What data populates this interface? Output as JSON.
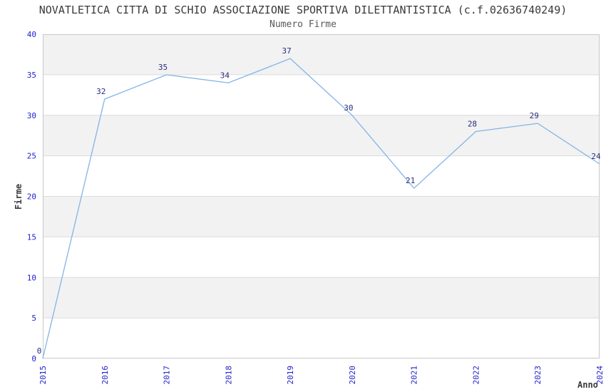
{
  "chart_data": {
    "type": "line",
    "title": "NOVATLETICA CITTA DI SCHIO ASSOCIAZIONE SPORTIVA DILETTANTISTICA (c.f.02636740249)",
    "subtitle": "Numero Firme",
    "xlabel": "Anno",
    "ylabel": "Firme",
    "x": [
      "2015",
      "2016",
      "2017",
      "2018",
      "2019",
      "2020",
      "2021",
      "2022",
      "2023",
      "2024"
    ],
    "values": [
      0,
      32,
      35,
      34,
      37,
      30,
      21,
      28,
      29,
      24
    ],
    "ylim": [
      0,
      40
    ],
    "ytick_step": 5,
    "yticks": [
      0,
      5,
      10,
      15,
      20,
      25,
      30,
      35,
      40
    ],
    "grid": "horizontal-bands-alternating",
    "legend": "none",
    "point_labels_visible": true,
    "x_tick_rotation_deg": 90,
    "colors": {
      "line": "#82b4e6",
      "tick_label": "#2323cc",
      "point_label": "#2b2b80",
      "band": "#f2f2f2",
      "band_alt": "#ffffff",
      "grid_line": "#dcdcdc",
      "plot_border": "#c8c8c8",
      "title": "#3a3a3a",
      "subtitle": "#595959",
      "axis_title": "#3a3a3a",
      "background": "#ffffff"
    }
  }
}
